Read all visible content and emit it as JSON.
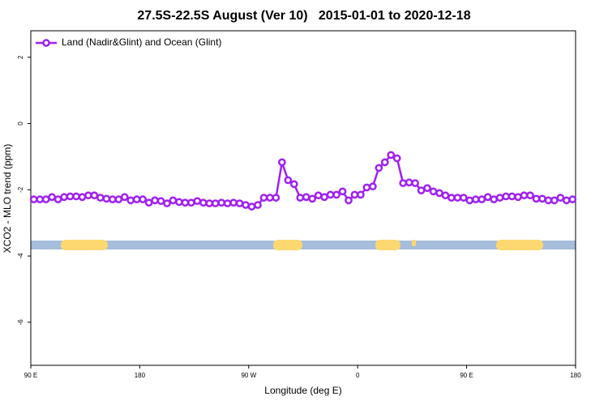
{
  "chart_data": {
    "type": "line",
    "title": "27.5S-22.5S August (Ver 10)   2015-01-01 to 2020-12-18",
    "x_label": "Longitude (deg E)",
    "y_label": "XCO2 - MLO trend (ppm)",
    "xlim": [
      90,
      540
    ],
    "ylim": [
      -7.3,
      2.8
    ],
    "xticks": [
      {
        "value": 90,
        "label": "90 E"
      },
      180,
      {
        "value": 270,
        "label": "90 W"
      },
      {
        "value": 360,
        "label": "0"
      },
      {
        "value": 450,
        "label": "90 E"
      },
      {
        "value": 540,
        "label": "180"
      }
    ],
    "yticks": [
      2,
      0,
      -2,
      -4,
      -6
    ],
    "legend": "top-left",
    "x": [
      92.5,
      97.5,
      102.5,
      107.5,
      112.5,
      117.5,
      122.5,
      127.5,
      132.5,
      137.5,
      142.5,
      147.5,
      152.5,
      157.5,
      162.5,
      167.5,
      172.5,
      177.5,
      182.5,
      187.5,
      192.5,
      197.5,
      202.5,
      207.5,
      212.5,
      217.5,
      222.5,
      227.5,
      232.5,
      237.5,
      242.5,
      247.5,
      252.5,
      257.5,
      262.5,
      267.5,
      272.5,
      277.5,
      282.5,
      287.5,
      292.5,
      297.5,
      302.5,
      307.5,
      312.5,
      317.5,
      322.5,
      327.5,
      332.5,
      337.5,
      342.5,
      347.5,
      352.5,
      357.5,
      362.5,
      367.5,
      372.5,
      377.5,
      382.5,
      387.5,
      392.5,
      397.5,
      402.5,
      407.5,
      412.5,
      417.5,
      422.5,
      427.5,
      432.5,
      437.5,
      442.5,
      447.5,
      452.5,
      457.5,
      462.5,
      467.5,
      472.5,
      477.5,
      482.5,
      487.5,
      492.5,
      497.5,
      502.5,
      507.5,
      512.5,
      517.5,
      522.5,
      527.5,
      532.5,
      537.5
    ],
    "series": [
      {
        "name": "Land (Nadir&Glint) and Ocean (Glint)",
        "color": "#a020f0",
        "values": [
          -2.29,
          -2.29,
          -2.29,
          -2.22,
          -2.29,
          -2.22,
          -2.2,
          -2.2,
          -2.22,
          -2.17,
          -2.17,
          -2.24,
          -2.27,
          -2.29,
          -2.29,
          -2.22,
          -2.32,
          -2.29,
          -2.29,
          -2.39,
          -2.32,
          -2.34,
          -2.41,
          -2.32,
          -2.37,
          -2.39,
          -2.39,
          -2.34,
          -2.39,
          -2.41,
          -2.41,
          -2.39,
          -2.41,
          -2.39,
          -2.41,
          -2.46,
          -2.51,
          -2.46,
          -2.24,
          -2.24,
          -2.24,
          -1.17,
          -1.71,
          -1.83,
          -2.24,
          -2.22,
          -2.27,
          -2.17,
          -2.22,
          -2.15,
          -2.15,
          -2.05,
          -2.32,
          -2.15,
          -2.15,
          -1.93,
          -1.9,
          -1.34,
          -1.17,
          -0.95,
          -1.05,
          -1.8,
          -1.78,
          -1.8,
          -2.02,
          -1.95,
          -2.05,
          -2.1,
          -2.17,
          -2.24,
          -2.24,
          -2.24,
          -2.32,
          -2.29,
          -2.29,
          -2.22,
          -2.29,
          -2.24,
          -2.2,
          -2.2,
          -2.22,
          -2.17,
          -2.17,
          -2.27,
          -2.27,
          -2.32,
          -2.32,
          -2.24,
          -2.32,
          -2.29
        ]
      }
    ]
  }
}
